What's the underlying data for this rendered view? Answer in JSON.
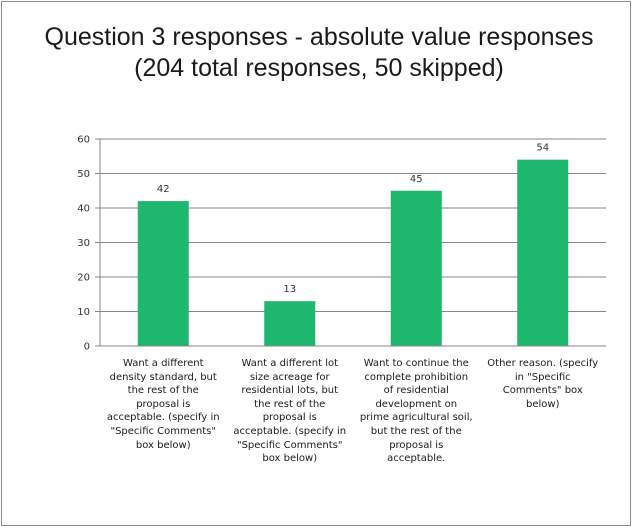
{
  "chart_data": {
    "type": "bar",
    "title": "Question 3 responses - absolute value responses (204 total responses, 50 skipped)",
    "categories": [
      "Want a different density standard, but the rest of the proposal is acceptable. (specify in \"Specific Comments\" box below)",
      "Want a different lot size acreage for residential lots, but the rest of the proposal is acceptable. (specify in \"Specific Comments\" box below)",
      "Want to continue the complete prohibition of residential development on prime agricultural soil, but the rest of the proposal is acceptable.",
      "Other reason. (specify in \"Specific Comments\" box below)"
    ],
    "category_lines": [
      "Want a different\ndensity standard, but\nthe rest of the\nproposal is\nacceptable. (specify in\n\"Specific Comments\"\nbox below)",
      "Want a different lot\nsize acreage for\nresidential lots, but\nthe rest of the\nproposal is\nacceptable. (specify in\n\"Specific Comments\"\nbox below)",
      "Want to continue the\ncomplete prohibition\nof residential\ndevelopment on\nprime agricultural soil,\nbut the rest of the\nproposal is\nacceptable.",
      "Other reason. (specify\nin \"Specific\nComments\" box\nbelow)"
    ],
    "values": [
      42,
      13,
      45,
      54
    ],
    "data_labels": [
      "42",
      "13",
      "45",
      "54"
    ],
    "ylim": [
      0,
      60
    ],
    "yticks": [
      0,
      10,
      20,
      30,
      40,
      50,
      60
    ],
    "xlabel": "",
    "ylabel": "",
    "grid": true,
    "legend": "none",
    "bar_color": "#1db76e",
    "grid_color": "#878787"
  }
}
